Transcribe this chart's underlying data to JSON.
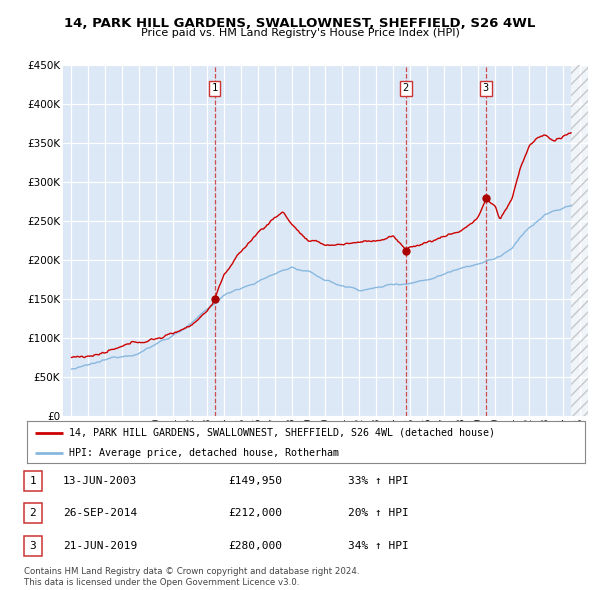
{
  "title_line1": "14, PARK HILL GARDENS, SWALLOWNEST, SHEFFIELD, S26 4WL",
  "title_line2": "Price paid vs. HM Land Registry's House Price Index (HPI)",
  "plot_bg_color": "#dce8f5",
  "red_line_color": "#cc0000",
  "blue_line_color": "#88b8e0",
  "legend_label_red": "14, PARK HILL GARDENS, SWALLOWNEST, SHEFFIELD, S26 4WL (detached house)",
  "legend_label_blue": "HPI: Average price, detached house, Rotherham",
  "transactions": [
    {
      "num": "1",
      "x": 2003.45,
      "price": 149950,
      "date_str": "13-JUN-2003",
      "price_str": "£149,950",
      "hpi_pct": "33% ↑ HPI"
    },
    {
      "num": "2",
      "x": 2014.74,
      "price": 212000,
      "date_str": "26-SEP-2014",
      "price_str": "£212,000",
      "hpi_pct": "20% ↑ HPI"
    },
    {
      "num": "3",
      "x": 2019.47,
      "price": 280000,
      "date_str": "21-JUN-2019",
      "price_str": "£280,000",
      "hpi_pct": "34% ↑ HPI"
    }
  ],
  "footnote_line1": "Contains HM Land Registry data © Crown copyright and database right 2024.",
  "footnote_line2": "This data is licensed under the Open Government Licence v3.0.",
  "ylim": [
    0,
    450000
  ],
  "xlim": [
    1994.5,
    2025.5
  ],
  "yticks": [
    0,
    50000,
    100000,
    150000,
    200000,
    250000,
    300000,
    350000,
    400000,
    450000
  ],
  "ytick_labels": [
    "£0",
    "£50K",
    "£100K",
    "£150K",
    "£200K",
    "£250K",
    "£300K",
    "£350K",
    "£400K",
    "£450K"
  ],
  "xticks": [
    1995,
    1996,
    1997,
    1998,
    1999,
    2000,
    2001,
    2002,
    2003,
    2004,
    2005,
    2006,
    2007,
    2008,
    2009,
    2010,
    2011,
    2012,
    2013,
    2014,
    2015,
    2016,
    2017,
    2018,
    2019,
    2020,
    2021,
    2022,
    2023,
    2024,
    2025
  ],
  "hatch_start": 2024.5
}
